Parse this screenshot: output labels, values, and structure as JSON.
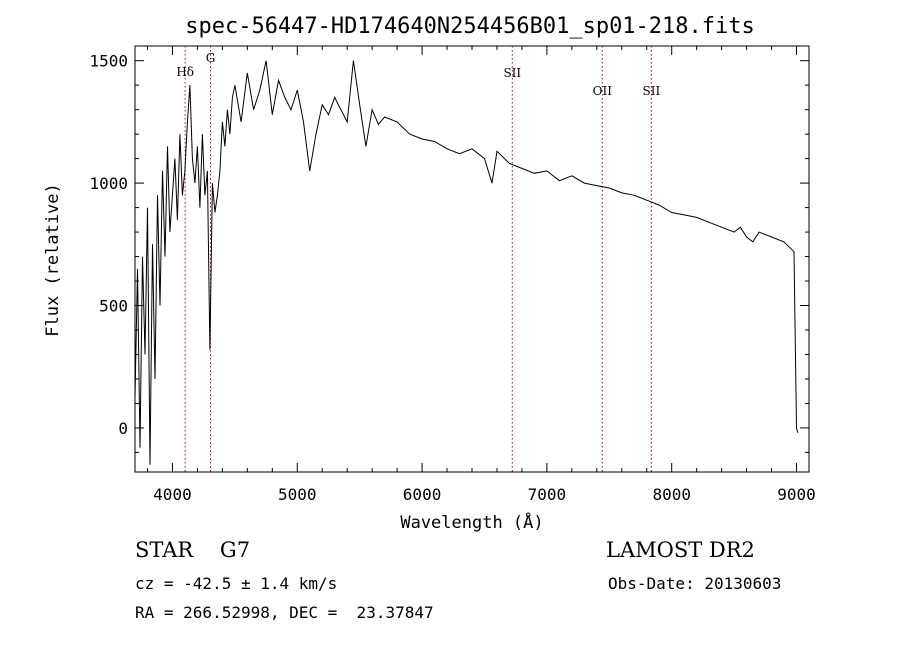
{
  "chart_data": {
    "type": "line",
    "title": "spec-56447-HD174640N254456B01_sp01-218.fits",
    "xlabel": "Wavelength (Å)",
    "ylabel": "Flux (relative)",
    "xlim": [
      3700,
      9100
    ],
    "ylim": [
      -180,
      1560
    ],
    "x_ticks": [
      "4000",
      "5000",
      "6000",
      "7000",
      "8000",
      "9000"
    ],
    "y_ticks": [
      "0",
      "500",
      "1000",
      "1500"
    ],
    "series": [
      {
        "x": [
          3700,
          3720,
          3740,
          3760,
          3780,
          3800,
          3820,
          3840,
          3860,
          3880,
          3900,
          3920,
          3940,
          3960,
          3980,
          4000,
          4020,
          4040,
          4060,
          4080,
          4100,
          4120,
          4140,
          4160,
          4180,
          4200,
          4220,
          4240,
          4260,
          4280,
          4300,
          4320,
          4340,
          4360,
          4380,
          4400,
          4420,
          4440,
          4460,
          4480,
          4500,
          4550,
          4600,
          4650,
          4700,
          4750,
          4800,
          4850,
          4900,
          4950,
          5000,
          5050,
          5100,
          5150,
          5200,
          5250,
          5300,
          5350,
          5400,
          5450,
          5500,
          5550,
          5600,
          5650,
          5700,
          5800,
          5900,
          6000,
          6100,
          6200,
          6300,
          6400,
          6500,
          6560,
          6600,
          6700,
          6800,
          6900,
          7000,
          7100,
          7200,
          7300,
          7400,
          7500,
          7600,
          7700,
          7800,
          7900,
          8000,
          8100,
          8200,
          8300,
          8400,
          8500,
          8550,
          8600,
          8650,
          8700,
          8800,
          8900,
          8980,
          9000,
          9010
        ],
        "y": [
          120,
          650,
          -80,
          700,
          300,
          900,
          -150,
          750,
          200,
          950,
          500,
          1050,
          700,
          1150,
          800,
          950,
          1100,
          850,
          1200,
          950,
          1050,
          1250,
          1400,
          1100,
          1000,
          1150,
          900,
          1200,
          950,
          1050,
          320,
          1000,
          880,
          950,
          1050,
          1250,
          1150,
          1300,
          1200,
          1350,
          1400,
          1250,
          1450,
          1300,
          1380,
          1500,
          1280,
          1420,
          1350,
          1300,
          1380,
          1250,
          1050,
          1200,
          1320,
          1280,
          1350,
          1300,
          1250,
          1500,
          1320,
          1150,
          1300,
          1240,
          1270,
          1250,
          1200,
          1180,
          1170,
          1140,
          1120,
          1140,
          1100,
          1000,
          1130,
          1080,
          1060,
          1040,
          1050,
          1010,
          1030,
          1000,
          990,
          980,
          960,
          950,
          930,
          910,
          880,
          870,
          860,
          840,
          820,
          800,
          820,
          780,
          760,
          800,
          780,
          760,
          720,
          0,
          -20
        ]
      }
    ],
    "lines": [
      {
        "x": 4102,
        "label": "Hδ"
      },
      {
        "x": 4305,
        "label": "G"
      },
      {
        "x": 6723,
        "label": "SII"
      },
      {
        "x": 7444,
        "label": "OII"
      },
      {
        "x": 7837,
        "label": "SII"
      }
    ]
  },
  "info": {
    "object_line": "STAR    G7",
    "survey": "LAMOST DR2",
    "cz_line": "cz = -42.5 ± 1.4 km/s",
    "obs_date": "Obs-Date: 20130603",
    "radec_line": "RA = 266.52998, DEC =  23.37847"
  }
}
